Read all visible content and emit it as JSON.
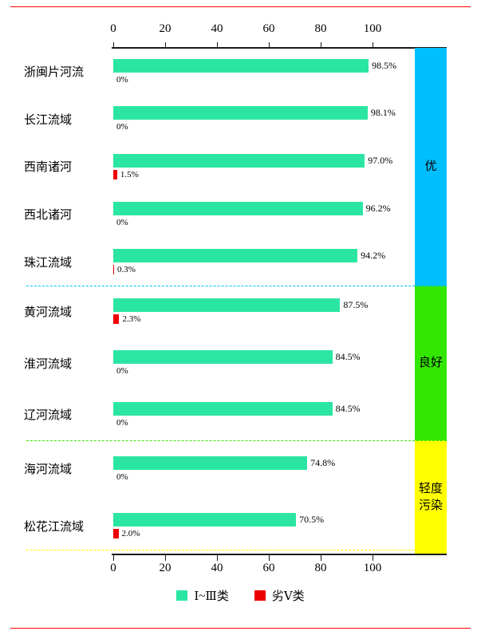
{
  "page": {
    "background": "#ffffff",
    "rule_color": "#ff0000",
    "axis_color": "#1a1a1a"
  },
  "chart_data": {
    "type": "bar",
    "orientation": "horizontal",
    "title": "",
    "xlabel": "",
    "ylabel": "",
    "xlim": [
      0,
      100
    ],
    "x_ticks": [
      0,
      20,
      40,
      60,
      80,
      100
    ],
    "x_tick_labels": [
      "0",
      "20",
      "40",
      "60",
      "80",
      "100"
    ],
    "grid": false,
    "legend_position": "bottom",
    "series": [
      {
        "name": "Ⅰ~Ⅲ类",
        "color": "#2be6a3"
      },
      {
        "name": "劣Ⅴ类",
        "color": "#ee0000"
      }
    ],
    "groups": [
      {
        "label": "优",
        "band_color": "#00bfff",
        "separator_color": "#00bfff",
        "rows": [
          {
            "category": "浙闽片河流",
            "good": 98.5,
            "good_label": "98.5%",
            "bad": 0,
            "bad_label": "0%"
          },
          {
            "category": "长江流域",
            "good": 98.1,
            "good_label": "98.1%",
            "bad": 0,
            "bad_label": "0%"
          },
          {
            "category": "西南诸河",
            "good": 97.0,
            "good_label": "97.0%",
            "bad": 1.5,
            "bad_label": "1.5%"
          },
          {
            "category": "西北诸河",
            "good": 96.2,
            "good_label": "96.2%",
            "bad": 0,
            "bad_label": "0%"
          },
          {
            "category": "珠江流域",
            "good": 94.2,
            "good_label": "94.2%",
            "bad": 0.3,
            "bad_label": "0.3%"
          }
        ]
      },
      {
        "label": "良好",
        "band_color": "#33e600",
        "separator_color": "#33e600",
        "rows": [
          {
            "category": "黄河流域",
            "good": 87.5,
            "good_label": "87.5%",
            "bad": 2.3,
            "bad_label": "2.3%"
          },
          {
            "category": "淮河流域",
            "good": 84.5,
            "good_label": "84.5%",
            "bad": 0,
            "bad_label": "0%"
          },
          {
            "category": "辽河流域",
            "good": 84.5,
            "good_label": "84.5%",
            "bad": 0,
            "bad_label": "0%"
          }
        ]
      },
      {
        "label": "轻度污染",
        "band_color": "#ffff00",
        "separator_color": "#ffff00",
        "rows": [
          {
            "category": "海河流域",
            "good": 74.8,
            "good_label": "74.8%",
            "bad": 0,
            "bad_label": "0%"
          },
          {
            "category": "松花江流域",
            "good": 70.5,
            "good_label": "70.5%",
            "bad": 2.0,
            "bad_label": "2.0%"
          }
        ]
      }
    ]
  },
  "legend": {
    "items": [
      {
        "label": "Ⅰ~Ⅲ类",
        "color": "#2be6a3"
      },
      {
        "label": "劣Ⅴ类",
        "color": "#ee0000"
      }
    ]
  }
}
